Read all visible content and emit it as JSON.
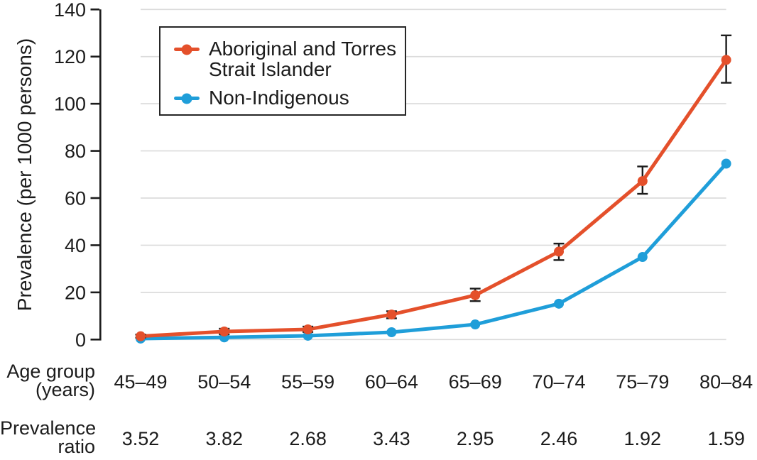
{
  "figure": {
    "y_axis_title": "Prevalence (per 1000 persons)",
    "age_axis_label_line1": "Age group",
    "age_axis_label_line2": "(years)",
    "ratio_label_line1": "Prevalence",
    "ratio_label_line2": "ratio"
  },
  "legend": {
    "entries": [
      {
        "label": "Aboriginal and Torres Strait Islander",
        "color": "#E4502B"
      },
      {
        "label": "Non-Indigenous",
        "color": "#1F9ED9"
      }
    ]
  },
  "colors": {
    "ink": "#1C1C1C",
    "gridline": "#DBDBDB",
    "background": "#FFFFFF"
  },
  "chart_data": {
    "type": "line",
    "title": "",
    "xlabel": "Age group (years)",
    "ylabel": "Prevalence (per 1000 persons)",
    "categories": [
      "45–49",
      "50–54",
      "55–59",
      "60–64",
      "65–69",
      "70–74",
      "75–79",
      "80–84"
    ],
    "y_ticks": [
      0,
      20,
      40,
      60,
      80,
      100,
      120,
      140
    ],
    "ylim": [
      0,
      140
    ],
    "grid": true,
    "legend_position": "top-left",
    "series": [
      {
        "name": "Aboriginal and Torres Strait Islander",
        "color": "#E4502B",
        "values": [
          1.4,
          3.4,
          4.3,
          10.6,
          18.8,
          37.3,
          67.2,
          118.6
        ],
        "ci_low": [
          0.8,
          2.2,
          3.2,
          9.0,
          16.3,
          33.7,
          61.8,
          108.9
        ],
        "ci_high": [
          2.1,
          4.6,
          5.5,
          12.0,
          21.6,
          40.7,
          73.4,
          129.0
        ]
      },
      {
        "name": "Non-Indigenous",
        "color": "#1F9ED9",
        "values": [
          0.4,
          0.9,
          1.6,
          3.1,
          6.4,
          15.2,
          35.0,
          74.6
        ]
      }
    ],
    "prevalence_ratio": [
      "3.52",
      "3.82",
      "2.68",
      "3.43",
      "2.95",
      "2.46",
      "1.92",
      "1.59"
    ]
  }
}
